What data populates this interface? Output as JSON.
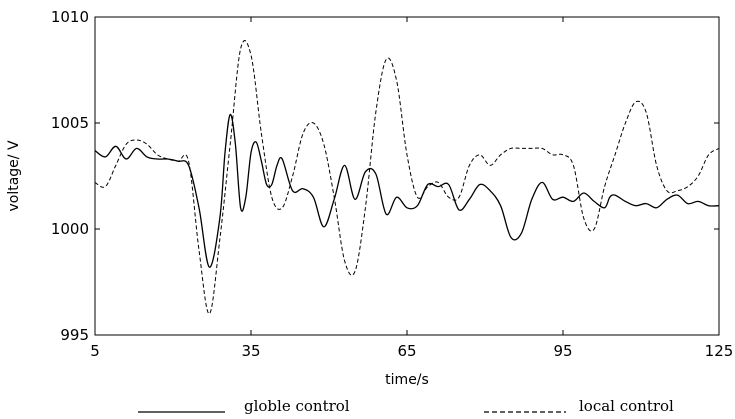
{
  "chart_data": {
    "type": "line",
    "xlabel": "time/s",
    "ylabel": "voltage/ V",
    "xlim": [
      5,
      125
    ],
    "ylim": [
      995,
      1010
    ],
    "xticks": [
      "5",
      "35",
      "65",
      "95",
      "125"
    ],
    "yticks": [
      "995",
      "1000",
      "1005",
      "1010"
    ],
    "grid": false,
    "legend_position": "bottom",
    "series": [
      {
        "name": "globle control",
        "style": "solid",
        "color": "#000000",
        "x": [
          5,
          7,
          9,
          11,
          13,
          15,
          17,
          19,
          21,
          23,
          25,
          27,
          29,
          30,
          31,
          32,
          33,
          34,
          35,
          36,
          37,
          38,
          39,
          40,
          41,
          43,
          45,
          47,
          49,
          51,
          53,
          55,
          57,
          59,
          61,
          63,
          65,
          67,
          69,
          71,
          73,
          75,
          77,
          79,
          81,
          83,
          85,
          87,
          89,
          91,
          93,
          95,
          97,
          99,
          101,
          103,
          104,
          105,
          107,
          109,
          111,
          113,
          115,
          117,
          119,
          121,
          123,
          125
        ],
        "y": [
          1003.7,
          1003.4,
          1003.9,
          1003.3,
          1003.8,
          1003.4,
          1003.3,
          1003.3,
          1003.2,
          1003.0,
          1001.0,
          998.2,
          1000.5,
          1003.6,
          1005.4,
          1004.0,
          1001.0,
          1001.5,
          1003.6,
          1004.1,
          1003.2,
          1002.1,
          1002.1,
          1003.0,
          1003.3,
          1001.8,
          1001.9,
          1001.5,
          1000.1,
          1001.4,
          1003.0,
          1001.4,
          1002.7,
          1002.6,
          1000.7,
          1001.5,
          1001.0,
          1001.1,
          1002.1,
          1002.0,
          1002.1,
          1000.9,
          1001.4,
          1002.1,
          1001.8,
          1001.1,
          999.6,
          999.8,
          1001.4,
          1002.2,
          1001.4,
          1001.5,
          1001.3,
          1001.7,
          1001.3,
          1001.0,
          1001.5,
          1001.6,
          1001.3,
          1001.1,
          1001.2,
          1001.0,
          1001.4,
          1001.6,
          1001.2,
          1001.3,
          1001.1,
          1001.1
        ]
      },
      {
        "name": "local control",
        "style": "dashed",
        "color": "#000000",
        "x": [
          5,
          7,
          9,
          11,
          13,
          15,
          17,
          19,
          21,
          23,
          25,
          27,
          29,
          31,
          33,
          35,
          37,
          39,
          41,
          43,
          45,
          47,
          49,
          51,
          53,
          55,
          57,
          59,
          61,
          63,
          65,
          67,
          69,
          71,
          73,
          75,
          77,
          79,
          81,
          83,
          85,
          87,
          89,
          91,
          93,
          95,
          97,
          99,
          101,
          103,
          105,
          107,
          109,
          111,
          113,
          115,
          117,
          119,
          121,
          123,
          125
        ],
        "y": [
          1002.2,
          1002.0,
          1003.0,
          1004.0,
          1004.2,
          1004.0,
          1003.5,
          1003.3,
          1003.2,
          1003.2,
          999.0,
          996.0,
          999.5,
          1004.0,
          1008.5,
          1008.2,
          1004.5,
          1001.5,
          1001.0,
          1002.5,
          1004.5,
          1005.0,
          1004.0,
          1001.5,
          998.5,
          998.0,
          1001.0,
          1005.5,
          1008.0,
          1007.0,
          1003.5,
          1001.5,
          1002.0,
          1002.2,
          1001.5,
          1001.5,
          1003.0,
          1003.5,
          1003.0,
          1003.5,
          1003.8,
          1003.8,
          1003.8,
          1003.8,
          1003.5,
          1003.5,
          1003.0,
          1000.5,
          1000.0,
          1002.0,
          1003.5,
          1005.0,
          1006.0,
          1005.5,
          1003.0,
          1001.8,
          1001.8,
          1002.0,
          1002.5,
          1003.5,
          1003.8
        ]
      }
    ]
  }
}
